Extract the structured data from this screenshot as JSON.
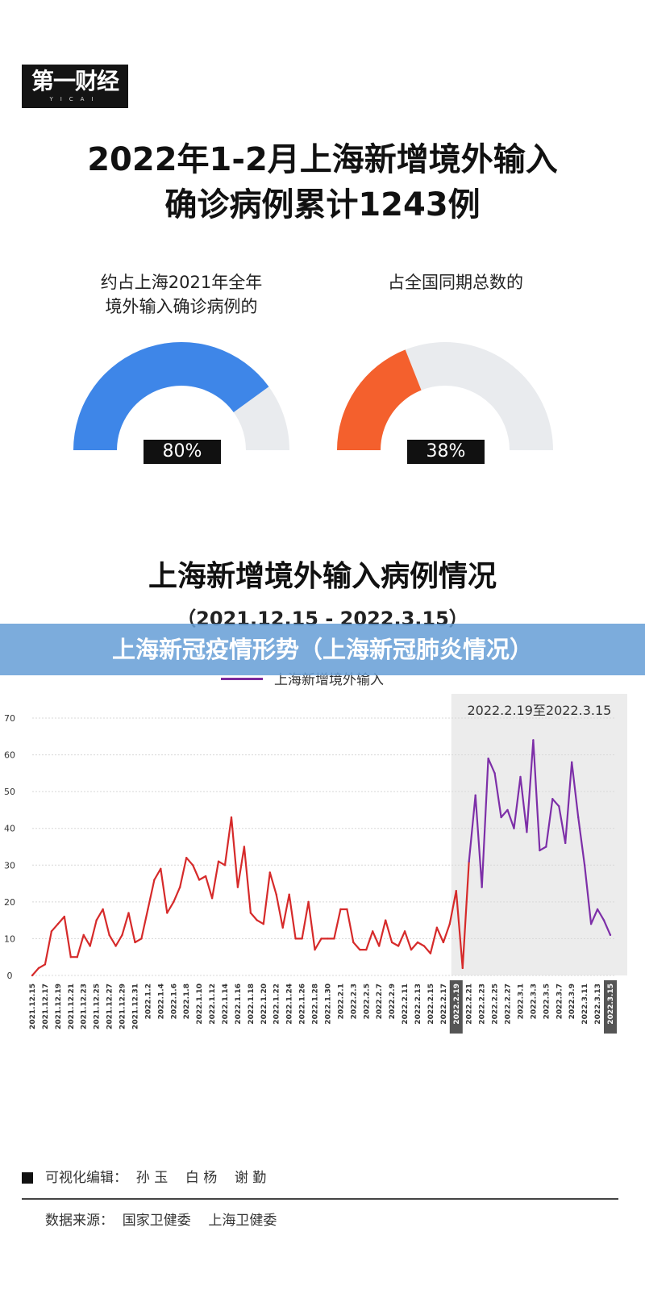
{
  "logo": {
    "main": "第一财经",
    "sub": "YICAI"
  },
  "header": {
    "title_line1": "2022年1-2月上海新增境外输入",
    "title_line2": "确诊病例累计1243例"
  },
  "gauges": [
    {
      "label_line1": "约占上海2021年全年",
      "label_line2": "境外输入确诊病例的",
      "value_text": "80%",
      "fraction": 0.8,
      "color": "#3e86e8",
      "track_color": "#e9ebee"
    },
    {
      "label_line1": "",
      "label_line2": "占全国同期总数的",
      "value_text": "38%",
      "fraction": 0.38,
      "color": "#f4602d",
      "track_color": "#e9ebee"
    }
  ],
  "section": {
    "title": "上海新增境外输入病例情况",
    "range": "（2021.12.15 - 2022.3.15）"
  },
  "overlay": {
    "text": "上海新冠疫情形势（上海新冠肺炎情况）"
  },
  "chart_data": {
    "type": "line",
    "title": "",
    "ylim": [
      0,
      70
    ],
    "yticks": [
      0,
      10,
      20,
      30,
      40,
      50,
      60,
      70
    ],
    "legend": {
      "label": "上海新增境外输入",
      "placement": "top-center"
    },
    "highlight": {
      "label": "2022.2.19至2022.3.15",
      "start": "2022.2.19",
      "end": "2022.3.15"
    },
    "xtick_labels": [
      "2021.12.15",
      "2021.12.17",
      "2021.12.19",
      "2021.12.21",
      "2021.12.23",
      "2021.12.25",
      "2021.12.27",
      "2021.12.29",
      "2021.12.31",
      "2022.1.2",
      "2022.1.4",
      "2022.1.6",
      "2022.1.8",
      "2022.1.10",
      "2022.1.12",
      "2022.1.14",
      "2022.1.16",
      "2022.1.18",
      "2022.1.20",
      "2022.1.22",
      "2022.1.24",
      "2022.1.26",
      "2022.1.28",
      "2022.1.30",
      "2022.2.1",
      "2022.2.3",
      "2022.2.5",
      "2022.2.7",
      "2022.2.9",
      "2022.2.11",
      "2022.2.13",
      "2022.2.15",
      "2022.2.17",
      "2022.2.19",
      "2022.2.21",
      "2022.2.23",
      "2022.2.25",
      "2022.2.27",
      "2022.3.1",
      "2022.3.3",
      "2022.3.5",
      "2022.3.7",
      "2022.3.9",
      "2022.3.11",
      "2022.3.13",
      "2022.3.15"
    ],
    "series": [
      {
        "name": "上海新增境外输入",
        "color_before": "#d62a2a",
        "color_after": "#7d2fa8",
        "values": [
          0,
          2,
          3,
          12,
          14,
          16,
          5,
          5,
          11,
          8,
          15,
          18,
          11,
          8,
          11,
          17,
          9,
          10,
          18,
          26,
          29,
          17,
          20,
          24,
          32,
          30,
          26,
          27,
          21,
          31,
          30,
          43,
          24,
          35,
          17,
          15,
          14,
          28,
          22,
          13,
          22,
          10,
          10,
          20,
          7,
          10,
          10,
          10,
          18,
          18,
          9,
          7,
          7,
          12,
          8,
          15,
          9,
          8,
          12,
          7,
          9,
          8,
          6,
          13,
          9,
          14,
          23,
          2,
          31,
          49,
          24,
          59,
          55,
          43,
          45,
          40,
          54,
          39,
          64,
          34,
          35,
          48,
          46,
          36,
          58,
          43,
          30,
          14,
          18,
          15,
          11
        ]
      }
    ]
  },
  "footer": {
    "editor": "可视化编辑：  孙 玉    白 杨    谢 勤",
    "source": "数据来源：  国家卫健委    上海卫健委"
  }
}
